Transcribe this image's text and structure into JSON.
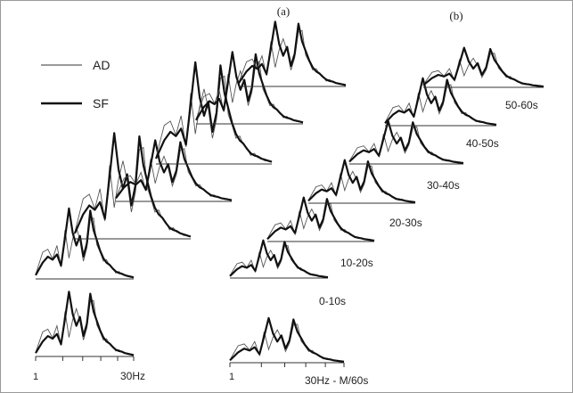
{
  "chart_data": {
    "type": "line",
    "panels": [
      {
        "label": "(a)"
      },
      {
        "label": "(b)"
      }
    ],
    "legend": {
      "placement": "top-left",
      "entries": [
        {
          "name": "AD",
          "style": "thin"
        },
        {
          "name": "SF",
          "style": "thick"
        }
      ]
    },
    "axis_a": {
      "start_label": "1",
      "end_label": "30Hz"
    },
    "axis_b": {
      "start_label": "1",
      "end_label": "30Hz - M/60s"
    },
    "window_labels": [
      "0-10s",
      "10-20s",
      "20-30s",
      "30-40s",
      "40-50s",
      "50-60s"
    ],
    "series": [
      {
        "name": "AD",
        "values": [
          0.06,
          0.36,
          0.4,
          0.27,
          0.45,
          0.16,
          0.66,
          0.28,
          0.54,
          0.7,
          0.52,
          0.24,
          0.42,
          0.8,
          0.82,
          0.46,
          0.36,
          0.24,
          0.26,
          0.18,
          0.15,
          0.08,
          0.1,
          0.06,
          0.05,
          0.03,
          0.03,
          0.02
        ]
      },
      {
        "name": "SF",
        "values": [
          0.05,
          0.22,
          0.3,
          0.26,
          0.33,
          0.18,
          0.56,
          0.95,
          0.62,
          0.45,
          0.58,
          0.3,
          0.48,
          0.92,
          0.66,
          0.52,
          0.38,
          0.28,
          0.22,
          0.19,
          0.14,
          0.1,
          0.08,
          0.07,
          0.05,
          0.04,
          0.03,
          0.02
        ]
      }
    ]
  }
}
